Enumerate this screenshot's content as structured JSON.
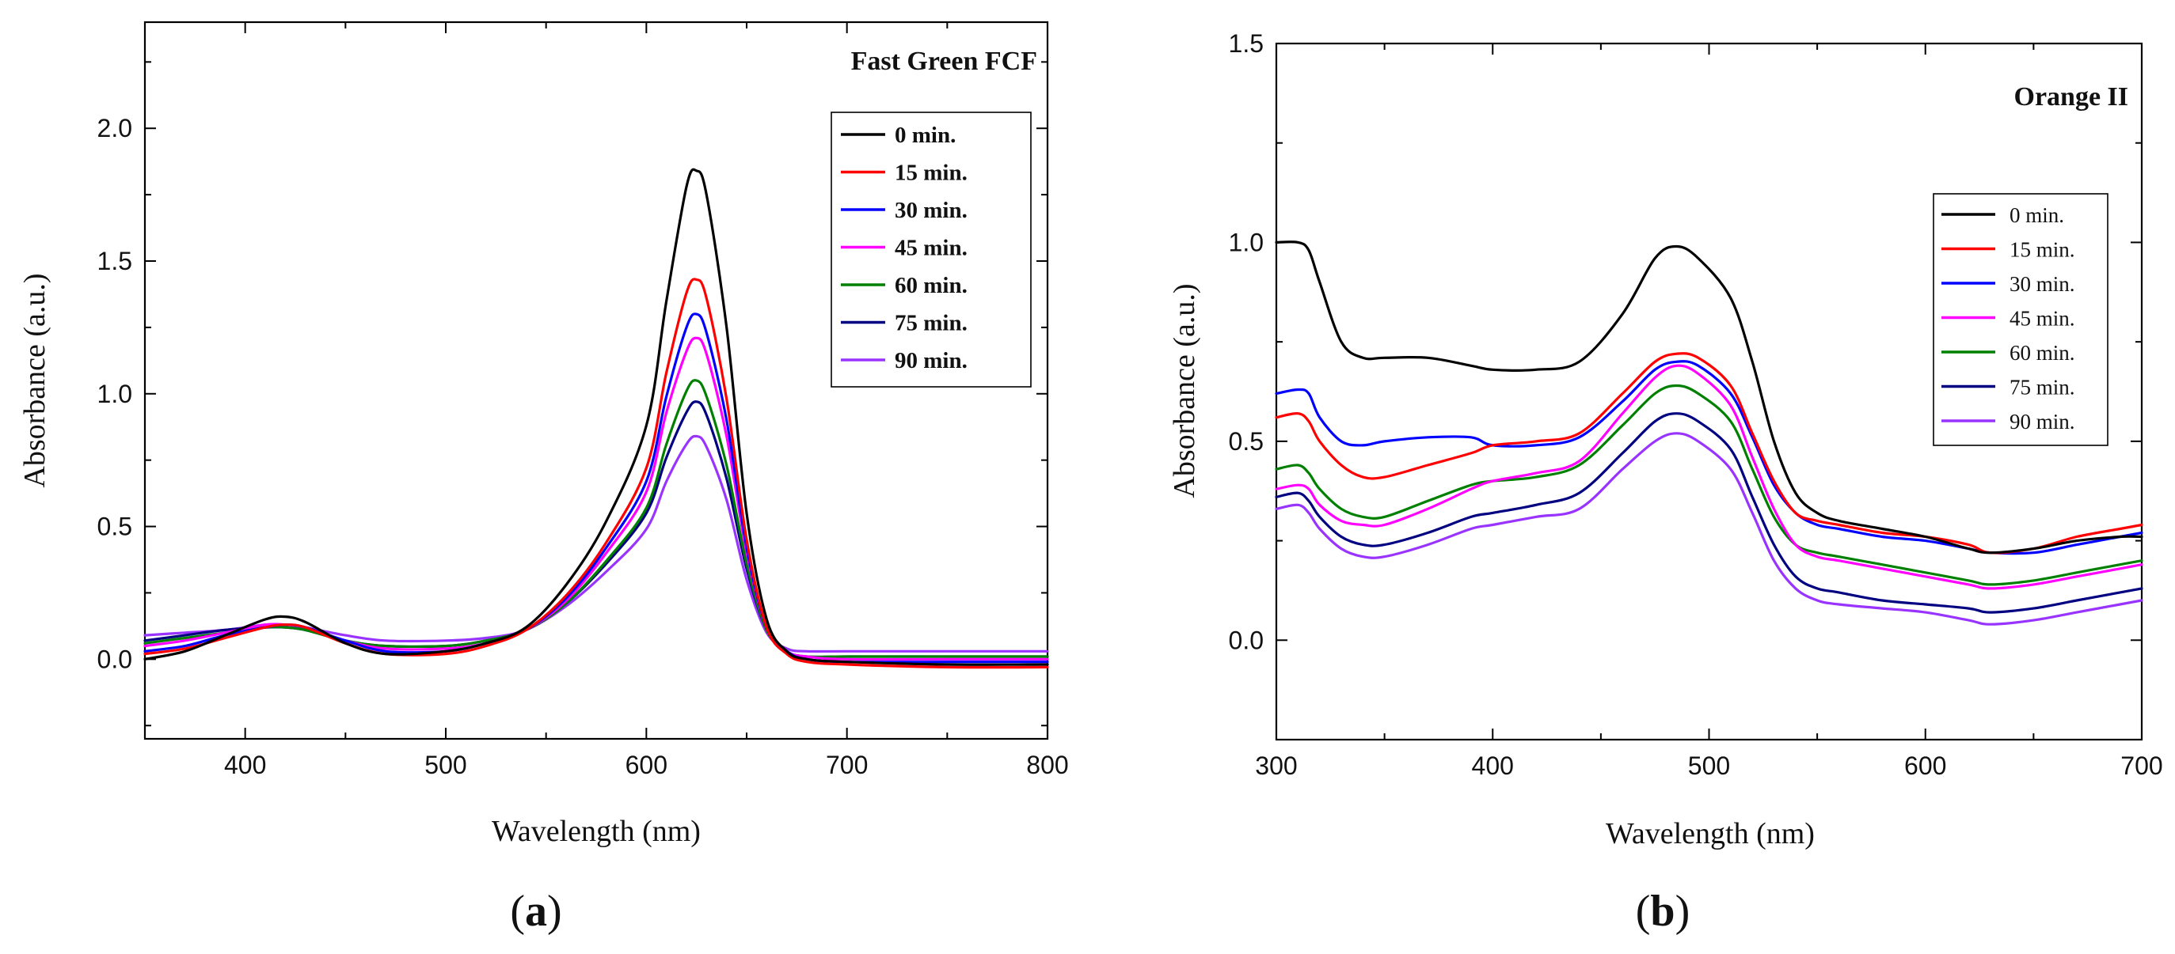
{
  "panels": [
    {
      "label_open": "(",
      "label_letter": "a",
      "label_close": ")"
    },
    {
      "label_open": "(",
      "label_letter": "b",
      "label_close": ")"
    }
  ],
  "chart_data": [
    {
      "type": "line",
      "title": "Fast Green FCF",
      "xlabel": "Wavelength (nm)",
      "ylabel": "Absorbance (a.u.)",
      "xlim": [
        350,
        800
      ],
      "ylim": [
        -0.3,
        2.4
      ],
      "xticks": [
        400,
        500,
        600,
        700,
        800
      ],
      "yticks": [
        0.0,
        0.5,
        1.0,
        1.5,
        2.0
      ],
      "xtick_labels": [
        "400",
        "500",
        "600",
        "700",
        "800"
      ],
      "ytick_labels": [
        "0.0",
        "0.5",
        "1.0",
        "1.5",
        "2.0"
      ],
      "grid": false,
      "legend_position": "top-right",
      "x": [
        350,
        370,
        390,
        410,
        420,
        430,
        450,
        470,
        500,
        520,
        540,
        560,
        580,
        600,
        610,
        620,
        625,
        630,
        640,
        650,
        660,
        670,
        680,
        700,
        750,
        800
      ],
      "series": [
        {
          "name": "0 min.",
          "color": "#000000",
          "values": [
            0.0,
            0.03,
            0.09,
            0.15,
            0.16,
            0.14,
            0.06,
            0.02,
            0.03,
            0.06,
            0.12,
            0.28,
            0.52,
            0.88,
            1.35,
            1.78,
            1.84,
            1.75,
            1.25,
            0.55,
            0.15,
            0.03,
            0.0,
            -0.01,
            -0.02,
            -0.02
          ]
        },
        {
          "name": "15 min.",
          "color": "#ff0000",
          "values": [
            0.02,
            0.04,
            0.08,
            0.12,
            0.13,
            0.12,
            0.06,
            0.02,
            0.02,
            0.05,
            0.11,
            0.24,
            0.44,
            0.72,
            1.08,
            1.38,
            1.43,
            1.36,
            0.98,
            0.45,
            0.12,
            0.02,
            -0.01,
            -0.02,
            -0.03,
            -0.03
          ]
        },
        {
          "name": "30 min.",
          "color": "#0000ff",
          "values": [
            0.03,
            0.05,
            0.09,
            0.12,
            0.13,
            0.12,
            0.07,
            0.03,
            0.03,
            0.06,
            0.11,
            0.23,
            0.42,
            0.67,
            0.99,
            1.25,
            1.3,
            1.23,
            0.9,
            0.42,
            0.12,
            0.03,
            0.0,
            -0.01,
            -0.01,
            -0.01
          ]
        },
        {
          "name": "45 min.",
          "color": "#ff00ff",
          "values": [
            0.05,
            0.07,
            0.1,
            0.13,
            0.13,
            0.12,
            0.07,
            0.04,
            0.04,
            0.06,
            0.11,
            0.22,
            0.4,
            0.63,
            0.93,
            1.16,
            1.21,
            1.15,
            0.84,
            0.4,
            0.12,
            0.03,
            0.01,
            0.0,
            0.0,
            0.0
          ]
        },
        {
          "name": "60 min.",
          "color": "#008000",
          "values": [
            0.06,
            0.08,
            0.1,
            0.12,
            0.12,
            0.11,
            0.07,
            0.05,
            0.05,
            0.07,
            0.11,
            0.21,
            0.37,
            0.57,
            0.81,
            1.01,
            1.05,
            0.99,
            0.73,
            0.36,
            0.11,
            0.03,
            0.01,
            0.01,
            0.01,
            0.01
          ]
        },
        {
          "name": "75 min.",
          "color": "#000080",
          "values": [
            0.07,
            0.09,
            0.11,
            0.12,
            0.12,
            0.11,
            0.07,
            0.05,
            0.05,
            0.07,
            0.11,
            0.21,
            0.36,
            0.55,
            0.76,
            0.93,
            0.97,
            0.92,
            0.68,
            0.34,
            0.11,
            0.03,
            0.01,
            0.01,
            0.01,
            0.01
          ]
        },
        {
          "name": "90 min.",
          "color": "#9933ff",
          "values": [
            0.09,
            0.1,
            0.11,
            0.13,
            0.13,
            0.12,
            0.09,
            0.07,
            0.07,
            0.08,
            0.11,
            0.2,
            0.33,
            0.49,
            0.67,
            0.81,
            0.84,
            0.8,
            0.6,
            0.3,
            0.1,
            0.04,
            0.03,
            0.03,
            0.03,
            0.03
          ]
        }
      ]
    },
    {
      "type": "line",
      "title": "Orange II",
      "xlabel": "Wavelength (nm)",
      "ylabel": "Absorbance (a.u.)",
      "xlim": [
        300,
        700
      ],
      "ylim": [
        -0.25,
        1.5
      ],
      "xticks": [
        300,
        400,
        500,
        600,
        700
      ],
      "yticks": [
        0.0,
        0.5,
        1.0,
        1.5
      ],
      "xtick_labels": [
        "300",
        "400",
        "500",
        "600",
        "700"
      ],
      "ytick_labels": [
        "0.0",
        "0.5",
        "1.0",
        "1.5"
      ],
      "grid": false,
      "legend_position": "right",
      "x": [
        300,
        310,
        315,
        320,
        330,
        340,
        350,
        370,
        390,
        400,
        420,
        440,
        460,
        475,
        485,
        495,
        510,
        520,
        530,
        540,
        550,
        560,
        580,
        600,
        620,
        630,
        650,
        670,
        690,
        700
      ],
      "series": [
        {
          "name": "0 min.",
          "color": "#000000",
          "values": [
            1.0,
            1.0,
            0.98,
            0.9,
            0.75,
            0.71,
            0.71,
            0.71,
            0.69,
            0.68,
            0.68,
            0.7,
            0.82,
            0.96,
            0.99,
            0.96,
            0.86,
            0.7,
            0.5,
            0.37,
            0.32,
            0.3,
            0.28,
            0.26,
            0.23,
            0.22,
            0.23,
            0.25,
            0.26,
            0.26
          ]
        },
        {
          "name": "15 min.",
          "color": "#ff0000",
          "values": [
            0.56,
            0.57,
            0.55,
            0.5,
            0.44,
            0.41,
            0.41,
            0.44,
            0.47,
            0.49,
            0.5,
            0.52,
            0.62,
            0.7,
            0.72,
            0.71,
            0.64,
            0.52,
            0.4,
            0.32,
            0.3,
            0.29,
            0.27,
            0.26,
            0.24,
            0.22,
            0.23,
            0.26,
            0.28,
            0.29
          ]
        },
        {
          "name": "30 min.",
          "color": "#0000ff",
          "values": [
            0.62,
            0.63,
            0.62,
            0.56,
            0.5,
            0.49,
            0.5,
            0.51,
            0.51,
            0.49,
            0.49,
            0.51,
            0.6,
            0.68,
            0.7,
            0.69,
            0.62,
            0.51,
            0.39,
            0.32,
            0.29,
            0.28,
            0.26,
            0.25,
            0.23,
            0.22,
            0.22,
            0.24,
            0.26,
            0.27
          ]
        },
        {
          "name": "45 min.",
          "color": "#ff00ff",
          "values": [
            0.38,
            0.39,
            0.38,
            0.34,
            0.3,
            0.29,
            0.29,
            0.33,
            0.38,
            0.4,
            0.42,
            0.45,
            0.57,
            0.66,
            0.69,
            0.67,
            0.59,
            0.46,
            0.33,
            0.24,
            0.21,
            0.2,
            0.18,
            0.16,
            0.14,
            0.13,
            0.14,
            0.16,
            0.18,
            0.19
          ]
        },
        {
          "name": "60 min.",
          "color": "#008000",
          "values": [
            0.43,
            0.44,
            0.42,
            0.38,
            0.33,
            0.31,
            0.31,
            0.35,
            0.39,
            0.4,
            0.41,
            0.44,
            0.54,
            0.62,
            0.64,
            0.62,
            0.55,
            0.43,
            0.31,
            0.24,
            0.22,
            0.21,
            0.19,
            0.17,
            0.15,
            0.14,
            0.15,
            0.17,
            0.19,
            0.2
          ]
        },
        {
          "name": "75 min.",
          "color": "#000080",
          "values": [
            0.36,
            0.37,
            0.35,
            0.31,
            0.26,
            0.24,
            0.24,
            0.27,
            0.31,
            0.32,
            0.34,
            0.37,
            0.47,
            0.55,
            0.57,
            0.55,
            0.48,
            0.36,
            0.24,
            0.16,
            0.13,
            0.12,
            0.1,
            0.09,
            0.08,
            0.07,
            0.08,
            0.1,
            0.12,
            0.13
          ]
        },
        {
          "name": "90 min.",
          "color": "#9933ff",
          "values": [
            0.33,
            0.34,
            0.32,
            0.28,
            0.23,
            0.21,
            0.21,
            0.24,
            0.28,
            0.29,
            0.31,
            0.33,
            0.43,
            0.5,
            0.52,
            0.5,
            0.43,
            0.32,
            0.2,
            0.13,
            0.1,
            0.09,
            0.08,
            0.07,
            0.05,
            0.04,
            0.05,
            0.07,
            0.09,
            0.1
          ]
        }
      ]
    }
  ]
}
